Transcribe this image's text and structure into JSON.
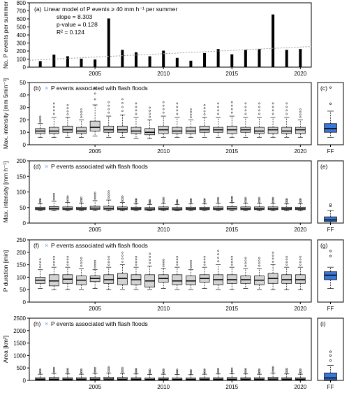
{
  "colors": {
    "box": "#d3d3d3",
    "ff_box": "#3a78d8",
    "ff_marker": "#6b9fe0",
    "trend": "#9a9a9a",
    "bar": "#000000",
    "frame": "#000000"
  },
  "chart_data": [
    {
      "type": "bar",
      "panel": "(a)",
      "ylabel": "No. P events per summer",
      "x": [
        2001,
        2002,
        2003,
        2004,
        2005,
        2006,
        2007,
        2008,
        2009,
        2010,
        2011,
        2012,
        2013,
        2014,
        2015,
        2016,
        2017,
        2018,
        2019,
        2020
      ],
      "values": [
        75,
        155,
        135,
        105,
        95,
        605,
        215,
        185,
        135,
        205,
        115,
        80,
        175,
        225,
        160,
        215,
        225,
        655,
        215,
        225
      ],
      "ylim": [
        0,
        800
      ],
      "yticks": [
        0,
        100,
        200,
        300,
        400,
        500,
        600,
        700,
        800
      ],
      "xticks": [
        2005,
        2010,
        2015,
        2020
      ],
      "annotation_title": "Linear model of P events ≥ 40 mm h⁻¹ per summer",
      "annotation_lines": [
        "slope = 8.303",
        "p-value = 0.128",
        "R² = 0.124"
      ],
      "trend": {
        "slope": 8.303,
        "intercept_at_2001": 92,
        "style": "dotted"
      }
    },
    {
      "type": "boxplot",
      "panel": "(b)",
      "ylabel": "Max. intensity [mm 5min⁻¹]",
      "legend": "P events associated with flash floods",
      "ylim": [
        0,
        50
      ],
      "yticks": [
        0,
        10,
        20,
        30,
        40,
        50
      ],
      "xticks": [
        2005,
        2010,
        2015,
        2020
      ],
      "boxes": [
        {
          "year": 2001,
          "min": 6,
          "q1": 9,
          "med": 11,
          "q3": 13,
          "max": 17
        },
        {
          "year": 2002,
          "min": 6,
          "q1": 9,
          "med": 11,
          "q3": 14,
          "max": 22
        },
        {
          "year": 2003,
          "min": 6,
          "q1": 10,
          "med": 12,
          "q3": 15,
          "max": 22
        },
        {
          "year": 2004,
          "min": 6,
          "q1": 9,
          "med": 11,
          "q3": 14,
          "max": 20
        },
        {
          "year": 2005,
          "min": 7,
          "q1": 11,
          "med": 14,
          "q3": 19,
          "max": 32
        },
        {
          "year": 2006,
          "min": 6,
          "q1": 10,
          "med": 12,
          "q3": 15,
          "max": 23
        },
        {
          "year": 2007,
          "min": 6,
          "q1": 10,
          "med": 12,
          "q3": 15,
          "max": 24
        },
        {
          "year": 2008,
          "min": 5,
          "q1": 9,
          "med": 11,
          "q3": 14,
          "max": 22
        },
        {
          "year": 2009,
          "min": 5,
          "q1": 8,
          "med": 10,
          "q3": 13,
          "max": 20
        },
        {
          "year": 2010,
          "min": 6,
          "q1": 9,
          "med": 12,
          "q3": 15,
          "max": 23
        },
        {
          "year": 2011,
          "min": 6,
          "q1": 9,
          "med": 11,
          "q3": 14,
          "max": 22
        },
        {
          "year": 2012,
          "min": 6,
          "q1": 9,
          "med": 11,
          "q3": 14,
          "max": 20
        },
        {
          "year": 2013,
          "min": 6,
          "q1": 10,
          "med": 12,
          "q3": 15,
          "max": 22
        },
        {
          "year": 2014,
          "min": 6,
          "q1": 10,
          "med": 12,
          "q3": 14,
          "max": 22
        },
        {
          "year": 2015,
          "min": 6,
          "q1": 9,
          "med": 12,
          "q3": 15,
          "max": 23
        },
        {
          "year": 2016,
          "min": 6,
          "q1": 10,
          "med": 12,
          "q3": 14,
          "max": 22
        },
        {
          "year": 2017,
          "min": 6,
          "q1": 9,
          "med": 11,
          "q3": 14,
          "max": 22
        },
        {
          "year": 2018,
          "min": 6,
          "q1": 9,
          "med": 12,
          "q3": 14,
          "max": 22
        },
        {
          "year": 2019,
          "min": 6,
          "q1": 9,
          "med": 11,
          "q3": 14,
          "max": 22
        },
        {
          "year": 2020,
          "min": 6,
          "q1": 9,
          "med": 12,
          "q3": 14,
          "max": 20
        }
      ],
      "ff_box": {
        "label": "FF",
        "min": 6,
        "q1": 10,
        "med": 13,
        "q3": 17,
        "max": 27,
        "outliers": [
          33,
          46
        ]
      },
      "ff_panel": "(c)",
      "ff_ylim": [
        0,
        50
      ],
      "ff_yticks": [
        0,
        10,
        20,
        30,
        40,
        50
      ]
    },
    {
      "type": "boxplot",
      "panel": "(d)",
      "ylabel": "Max. intensity [mm h⁻¹]",
      "legend": "P events associated with flash floods",
      "ylim": [
        0,
        200
      ],
      "yticks": [
        0,
        50,
        100,
        150,
        200
      ],
      "xticks": [
        2005,
        2010,
        2015,
        2020
      ],
      "boxes": [
        {
          "year": 2001,
          "min": 40,
          "q1": 43,
          "med": 46,
          "q3": 51,
          "max": 62
        },
        {
          "year": 2002,
          "min": 40,
          "q1": 43,
          "med": 47,
          "q3": 53,
          "max": 70
        },
        {
          "year": 2003,
          "min": 40,
          "q1": 43,
          "med": 46,
          "q3": 52,
          "max": 66
        },
        {
          "year": 2004,
          "min": 40,
          "q1": 43,
          "med": 46,
          "q3": 51,
          "max": 64
        },
        {
          "year": 2005,
          "min": 40,
          "q1": 44,
          "med": 48,
          "q3": 54,
          "max": 72
        },
        {
          "year": 2006,
          "min": 40,
          "q1": 43,
          "med": 47,
          "q3": 54,
          "max": 74
        },
        {
          "year": 2007,
          "min": 40,
          "q1": 43,
          "med": 46,
          "q3": 52,
          "max": 66
        },
        {
          "year": 2008,
          "min": 40,
          "q1": 43,
          "med": 46,
          "q3": 51,
          "max": 62
        },
        {
          "year": 2009,
          "min": 40,
          "q1": 42,
          "med": 45,
          "q3": 50,
          "max": 60
        },
        {
          "year": 2010,
          "min": 40,
          "q1": 43,
          "med": 46,
          "q3": 52,
          "max": 64
        },
        {
          "year": 2011,
          "min": 40,
          "q1": 42,
          "med": 45,
          "q3": 50,
          "max": 60
        },
        {
          "year": 2012,
          "min": 40,
          "q1": 43,
          "med": 46,
          "q3": 51,
          "max": 62
        },
        {
          "year": 2013,
          "min": 40,
          "q1": 43,
          "med": 46,
          "q3": 51,
          "max": 62
        },
        {
          "year": 2014,
          "min": 40,
          "q1": 43,
          "med": 46,
          "q3": 52,
          "max": 64
        },
        {
          "year": 2015,
          "min": 40,
          "q1": 43,
          "med": 47,
          "q3": 53,
          "max": 66
        },
        {
          "year": 2016,
          "min": 40,
          "q1": 43,
          "med": 46,
          "q3": 52,
          "max": 64
        },
        {
          "year": 2017,
          "min": 40,
          "q1": 43,
          "med": 46,
          "q3": 52,
          "max": 64
        },
        {
          "year": 2018,
          "min": 40,
          "q1": 43,
          "med": 46,
          "q3": 52,
          "max": 64
        },
        {
          "year": 2019,
          "min": 40,
          "q1": 43,
          "med": 46,
          "q3": 51,
          "max": 62
        },
        {
          "year": 2020,
          "min": 40,
          "q1": 43,
          "med": 46,
          "q3": 51,
          "max": 62
        }
      ],
      "ff_box": {
        "label": "FF",
        "min": 0,
        "q1": 5,
        "med": 10,
        "q3": 20,
        "max": 40,
        "outliers": [
          55,
          60
        ]
      },
      "ff_panel": "(e)",
      "ff_ylim": [
        0,
        200
      ],
      "ff_yticks": [
        0,
        50,
        100,
        150,
        200
      ]
    },
    {
      "type": "boxplot",
      "panel": "(f)",
      "ylabel": "P duration [min]",
      "legend": "P events associated with flash floods",
      "ylim": [
        0,
        250
      ],
      "yticks": [
        0,
        50,
        100,
        150,
        200,
        250
      ],
      "xticks": [
        2005,
        2010,
        2015,
        2020
      ],
      "boxes": [
        {
          "year": 2001,
          "min": 55,
          "q1": 75,
          "med": 88,
          "q3": 100,
          "max": 130
        },
        {
          "year": 2002,
          "min": 50,
          "q1": 65,
          "med": 85,
          "q3": 110,
          "max": 140
        },
        {
          "year": 2003,
          "min": 50,
          "q1": 75,
          "med": 92,
          "q3": 110,
          "max": 140
        },
        {
          "year": 2004,
          "min": 50,
          "q1": 70,
          "med": 88,
          "q3": 105,
          "max": 135
        },
        {
          "year": 2005,
          "min": 55,
          "q1": 82,
          "med": 95,
          "q3": 105,
          "max": 130
        },
        {
          "year": 2006,
          "min": 50,
          "q1": 75,
          "med": 90,
          "q3": 110,
          "max": 140
        },
        {
          "year": 2007,
          "min": 50,
          "q1": 70,
          "med": 95,
          "q3": 115,
          "max": 150
        },
        {
          "year": 2008,
          "min": 50,
          "q1": 70,
          "med": 90,
          "q3": 110,
          "max": 140
        },
        {
          "year": 2009,
          "min": 50,
          "q1": 60,
          "med": 85,
          "q3": 110,
          "max": 145
        },
        {
          "year": 2010,
          "min": 55,
          "q1": 80,
          "med": 95,
          "q3": 110,
          "max": 135
        },
        {
          "year": 2011,
          "min": 50,
          "q1": 70,
          "med": 85,
          "q3": 110,
          "max": 140
        },
        {
          "year": 2012,
          "min": 50,
          "q1": 70,
          "med": 85,
          "q3": 105,
          "max": 130
        },
        {
          "year": 2013,
          "min": 55,
          "q1": 80,
          "med": 95,
          "q3": 110,
          "max": 140
        },
        {
          "year": 2014,
          "min": 50,
          "q1": 70,
          "med": 90,
          "q3": 110,
          "max": 150
        },
        {
          "year": 2015,
          "min": 50,
          "q1": 75,
          "med": 90,
          "q3": 110,
          "max": 140
        },
        {
          "year": 2016,
          "min": 55,
          "q1": 75,
          "med": 90,
          "q3": 105,
          "max": 135
        },
        {
          "year": 2017,
          "min": 50,
          "q1": 70,
          "med": 88,
          "q3": 105,
          "max": 135
        },
        {
          "year": 2018,
          "min": 50,
          "q1": 75,
          "med": 95,
          "q3": 115,
          "max": 150
        },
        {
          "year": 2019,
          "min": 50,
          "q1": 75,
          "med": 90,
          "q3": 110,
          "max": 140
        },
        {
          "year": 2020,
          "min": 50,
          "q1": 75,
          "med": 90,
          "q3": 110,
          "max": 140
        }
      ],
      "ff_box": {
        "label": "FF",
        "min": 55,
        "q1": 90,
        "med": 108,
        "q3": 122,
        "max": 140,
        "outliers": [
          185,
          205
        ]
      },
      "ff_panel": "(g)",
      "ff_ylim": [
        0,
        250
      ],
      "ff_yticks": [
        0,
        50,
        100,
        150,
        200,
        250
      ]
    },
    {
      "type": "boxplot",
      "panel": "(h)",
      "ylabel": "Area [km²]",
      "legend": "P events associated with flash floods",
      "ylim": [
        0,
        2500
      ],
      "yticks": [
        0,
        500,
        1000,
        1500,
        2000,
        2500
      ],
      "xticks": [
        2005,
        2010,
        2015,
        2020
      ],
      "boxes": [
        {
          "year": 2001,
          "min": 0,
          "q1": 20,
          "med": 50,
          "q3": 110,
          "max": 250
        },
        {
          "year": 2002,
          "min": 0,
          "q1": 20,
          "med": 50,
          "q3": 120,
          "max": 280
        },
        {
          "year": 2003,
          "min": 0,
          "q1": 20,
          "med": 50,
          "q3": 110,
          "max": 260
        },
        {
          "year": 2004,
          "min": 0,
          "q1": 20,
          "med": 50,
          "q3": 110,
          "max": 250
        },
        {
          "year": 2005,
          "min": 0,
          "q1": 20,
          "med": 50,
          "q3": 120,
          "max": 280
        },
        {
          "year": 2006,
          "min": 0,
          "q1": 25,
          "med": 55,
          "q3": 130,
          "max": 300
        },
        {
          "year": 2007,
          "min": 0,
          "q1": 20,
          "med": 50,
          "q3": 120,
          "max": 280
        },
        {
          "year": 2008,
          "min": 0,
          "q1": 20,
          "med": 50,
          "q3": 110,
          "max": 260
        },
        {
          "year": 2009,
          "min": 0,
          "q1": 20,
          "med": 45,
          "q3": 100,
          "max": 240
        },
        {
          "year": 2010,
          "min": 0,
          "q1": 20,
          "med": 50,
          "q3": 110,
          "max": 250
        },
        {
          "year": 2011,
          "min": 0,
          "q1": 20,
          "med": 45,
          "q3": 100,
          "max": 240
        },
        {
          "year": 2012,
          "min": 0,
          "q1": 20,
          "med": 45,
          "q3": 100,
          "max": 230
        },
        {
          "year": 2013,
          "min": 0,
          "q1": 20,
          "med": 50,
          "q3": 110,
          "max": 250
        },
        {
          "year": 2014,
          "min": 0,
          "q1": 20,
          "med": 50,
          "q3": 110,
          "max": 260
        },
        {
          "year": 2015,
          "min": 0,
          "q1": 20,
          "med": 50,
          "q3": 120,
          "max": 270
        },
        {
          "year": 2016,
          "min": 0,
          "q1": 20,
          "med": 50,
          "q3": 110,
          "max": 260
        },
        {
          "year": 2017,
          "min": 0,
          "q1": 20,
          "med": 50,
          "q3": 110,
          "max": 250
        },
        {
          "year": 2018,
          "min": 0,
          "q1": 25,
          "med": 55,
          "q3": 130,
          "max": 300
        },
        {
          "year": 2019,
          "min": 0,
          "q1": 20,
          "med": 50,
          "q3": 110,
          "max": 260
        },
        {
          "year": 2020,
          "min": 0,
          "q1": 20,
          "med": 50,
          "q3": 110,
          "max": 250
        }
      ],
      "ff_box": {
        "label": "FF",
        "min": 0,
        "q1": 20,
        "med": 100,
        "q3": 300,
        "max": 600,
        "outliers": [
          800,
          1000,
          1150
        ]
      },
      "ff_panel": "(i)",
      "ff_ylim": [
        0,
        2500
      ],
      "ff_yticks": [
        0,
        500,
        1000,
        1500,
        2000,
        2500
      ]
    }
  ]
}
